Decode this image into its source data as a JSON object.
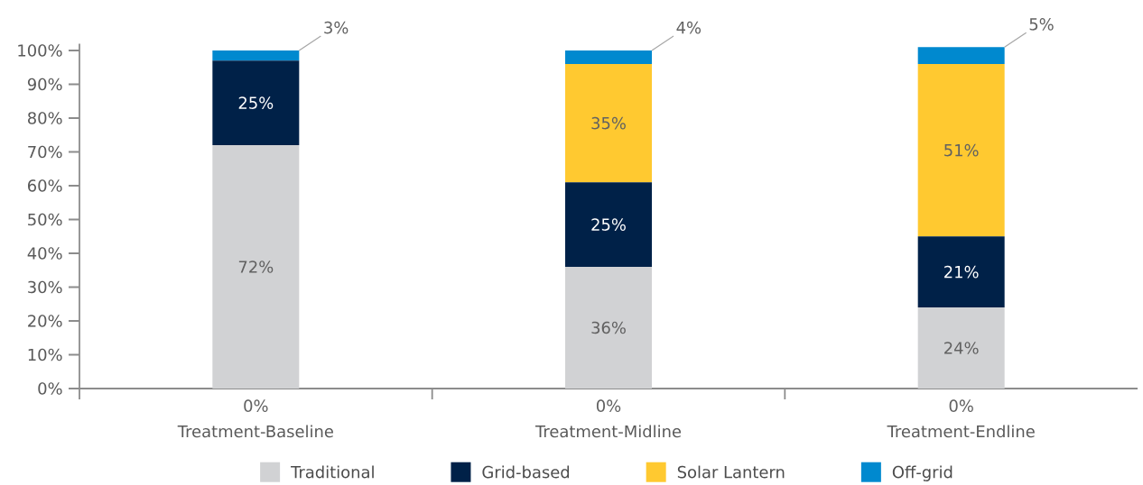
{
  "chart_data": {
    "type": "bar",
    "stacked": true,
    "categories": [
      "Treatment-Baseline",
      "Treatment-Midline",
      "Treatment-Endline"
    ],
    "series": [
      {
        "name": "Traditional",
        "color": "#d1d2d4",
        "values": [
          72,
          36,
          24
        ],
        "value_labels": [
          "72%",
          "36%",
          "24%"
        ]
      },
      {
        "name": "Grid-based",
        "color": "#002148",
        "values": [
          25,
          25,
          21
        ],
        "value_labels": [
          "25%",
          "25%",
          "21%"
        ]
      },
      {
        "name": "Solar Lantern",
        "color": "#ffc930",
        "values": [
          0,
          35,
          51
        ],
        "value_labels": [
          null,
          "35%",
          "51%"
        ]
      },
      {
        "name": "Off-grid",
        "color": "#0089cf",
        "values": [
          3,
          4,
          5
        ],
        "value_labels": [
          "3%",
          "4%",
          "5%"
        ]
      }
    ],
    "ylim": [
      0,
      102
    ],
    "yticks": [
      {
        "value": 0,
        "label": "0%"
      },
      {
        "value": 10,
        "label": "10%"
      },
      {
        "value": 20,
        "label": "20%"
      },
      {
        "value": 30,
        "label": "30%"
      },
      {
        "value": 40,
        "label": "40%"
      },
      {
        "value": 50,
        "label": "50%"
      },
      {
        "value": 60,
        "label": "60%"
      },
      {
        "value": 70,
        "label": "70%"
      },
      {
        "value": 80,
        "label": "80%"
      },
      {
        "value": 90,
        "label": "90%"
      },
      {
        "value": 100,
        "label": "100%"
      }
    ],
    "annotations": [
      {
        "text": "0%",
        "x": "Treatment-Baseline",
        "y": 0
      },
      {
        "text": "0%",
        "x": "Treatment-Midline",
        "y": 0
      },
      {
        "text": "0%",
        "x": "Treatment-Endline",
        "y": 0
      }
    ],
    "legend": "bottom",
    "grid": false
  }
}
